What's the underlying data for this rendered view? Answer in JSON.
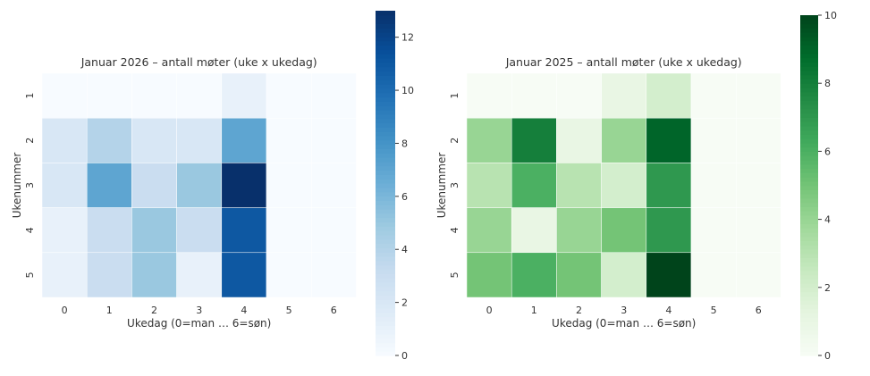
{
  "chart_data": [
    {
      "type": "heatmap",
      "title": "Januar 2026 – antall møter (uke x ukedag)",
      "xlabel": "Ukedag (0=man … 6=søn)",
      "ylabel": "Ukenummer",
      "x_categories": [
        "0",
        "1",
        "2",
        "3",
        "4",
        "5",
        "6"
      ],
      "y_categories": [
        "1",
        "2",
        "3",
        "4",
        "5"
      ],
      "values": [
        [
          0,
          0,
          0,
          0,
          1,
          0,
          0
        ],
        [
          2,
          4,
          2,
          2,
          7,
          0,
          0
        ],
        [
          2,
          7,
          3,
          5,
          13,
          0,
          0
        ],
        [
          1,
          3,
          5,
          3,
          11,
          0,
          0
        ],
        [
          1,
          3,
          5,
          1,
          11,
          0,
          0
        ]
      ],
      "colormap": "Blues",
      "colorbar": {
        "range": [
          0,
          13
        ],
        "ticks": [
          0,
          2,
          4,
          6,
          8,
          10,
          12
        ]
      }
    },
    {
      "type": "heatmap",
      "title": "Januar 2025 – antall møter (uke x ukedag)",
      "xlabel": "Ukedag (0=man … 6=søn)",
      "ylabel": "Ukenummer",
      "x_categories": [
        "0",
        "1",
        "2",
        "3",
        "4",
        "5",
        "6"
      ],
      "y_categories": [
        "1",
        "2",
        "3",
        "4",
        "5"
      ],
      "values": [
        [
          0,
          0,
          0,
          1,
          2,
          0,
          0
        ],
        [
          4,
          8,
          1,
          4,
          9,
          0,
          0
        ],
        [
          3,
          6,
          3,
          2,
          7,
          0,
          0
        ],
        [
          4,
          1,
          4,
          5,
          7,
          0,
          0
        ],
        [
          5,
          6,
          5,
          2,
          10,
          0,
          0
        ]
      ],
      "colormap": "Greens",
      "colorbar": {
        "range": [
          0,
          10
        ],
        "ticks": [
          0,
          2,
          4,
          6,
          8,
          10
        ]
      }
    }
  ]
}
